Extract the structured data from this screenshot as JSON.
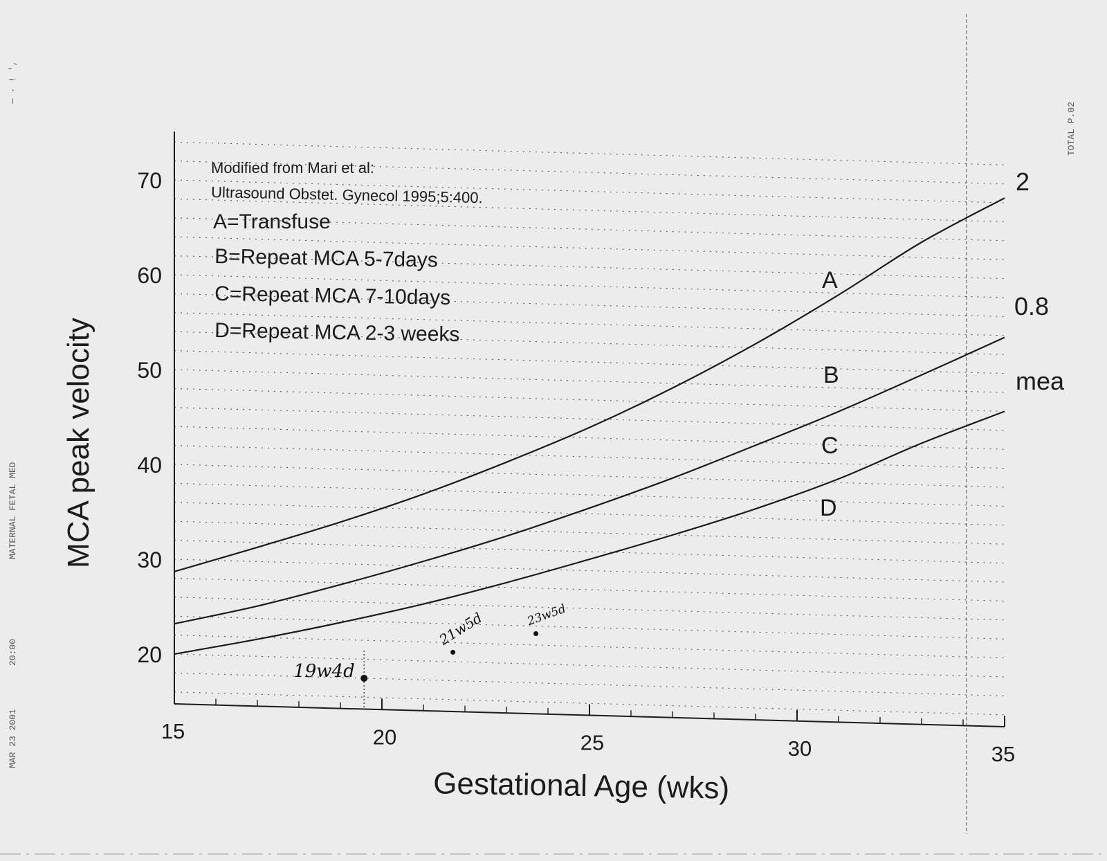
{
  "chart_data": {
    "type": "line",
    "xlabel": "Gestational Age (wks)",
    "ylabel": "MCA peak velocity",
    "xlim": [
      15,
      35
    ],
    "ylim": [
      15,
      75
    ],
    "x_ticks": [
      15,
      20,
      25,
      30,
      35
    ],
    "y_ticks": [
      20,
      30,
      40,
      50,
      60,
      70
    ],
    "grid": "horizontal dotted",
    "notes": [
      "Modified from Mari et al:",
      "Ultrasound Obstet. Gynecol 1995;5:400.",
      "A=Transfuse",
      "B=Repeat MCA 5-7days",
      "C=Repeat MCA 7-10days",
      "D=Repeat MCA 2-3 weeks"
    ],
    "series": [
      {
        "name": "2",
        "x": [
          15,
          17,
          19,
          21,
          23,
          25,
          27,
          29,
          31,
          33,
          35
        ],
        "values": [
          28.7,
          31.5,
          34.4,
          37.6,
          41.2,
          45.1,
          49.5,
          54.4,
          59.8,
          65.6,
          70.5
        ]
      },
      {
        "name": "0.8",
        "x": [
          15,
          17,
          19,
          21,
          23,
          25,
          27,
          29,
          31,
          33,
          35
        ],
        "values": [
          23.2,
          25.3,
          27.8,
          30.5,
          33.4,
          36.6,
          40.0,
          43.7,
          47.5,
          51.6,
          55.8
        ]
      },
      {
        "name": "mea",
        "x": [
          15,
          17,
          19,
          21,
          23,
          25,
          27,
          29,
          31,
          33,
          35
        ],
        "values": [
          20.0,
          21.8,
          23.8,
          26.0,
          28.5,
          31.2,
          34.0,
          37.0,
          40.4,
          44.4,
          48.0
        ]
      }
    ],
    "zones": [
      "A",
      "B",
      "C",
      "D"
    ],
    "annotations": [
      {
        "text": "19w4d",
        "x": 19.57,
        "y": 18.0
      },
      {
        "text": "21w5d",
        "x": 21.71,
        "y": 21.0
      },
      {
        "text": "23w5d",
        "x": 23.71,
        "y": 23.2
      }
    ]
  },
  "margin": {
    "right": "TOTAL P.02",
    "left_top": "— · ! ',",
    "left_mid": "MATERNAL FETAL MED",
    "left_low": "20:00",
    "left_bottom": "MAR 23 2001"
  },
  "colors": {
    "paper": "#ececec",
    "ink": "#1c1c1c"
  }
}
